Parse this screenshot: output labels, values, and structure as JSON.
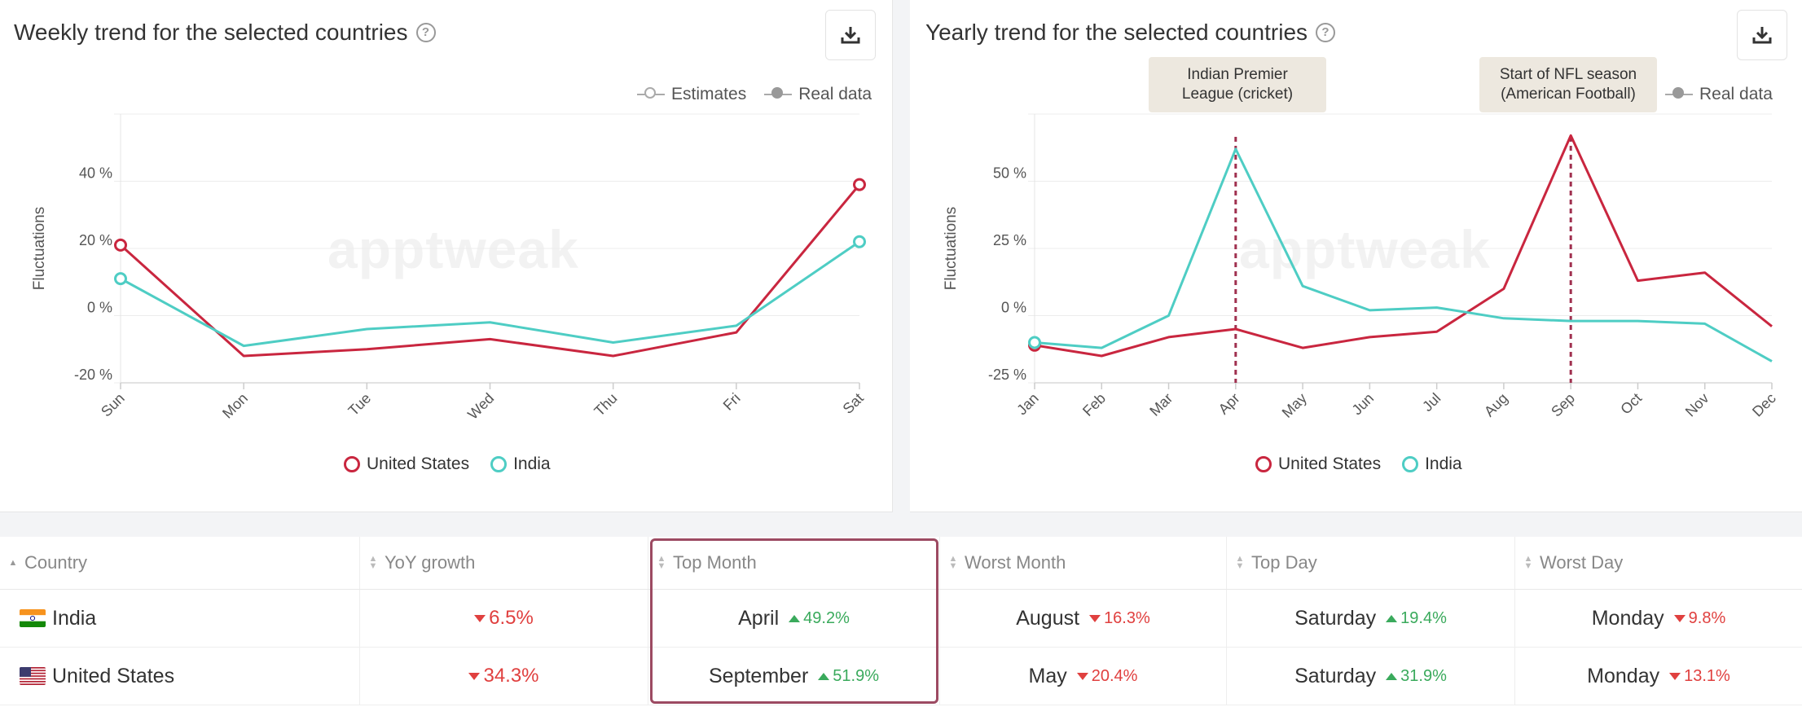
{
  "weekly": {
    "title": "Weekly trend for the selected countries",
    "legend_estimates": "Estimates",
    "legend_real": "Real data",
    "watermark": "apptweak",
    "chart_data": {
      "type": "line",
      "ylabel": "Fluctuations",
      "xlabel": "",
      "x": [
        "Sun",
        "Mon",
        "Tue",
        "Wed",
        "Thu",
        "Fri",
        "Sat"
      ],
      "yticks": [
        "40 %",
        "20 %",
        "0 %",
        "-20 %"
      ],
      "ylim": [
        -20,
        60
      ],
      "series": [
        {
          "name": "United States",
          "color": "#c9263f",
          "values": [
            21,
            -12,
            -10,
            -7,
            -12,
            -5,
            39
          ]
        },
        {
          "name": "India",
          "color": "#4ecdc4",
          "values": [
            11,
            -9,
            -4,
            -2,
            -8,
            -3,
            22
          ]
        }
      ]
    }
  },
  "yearly": {
    "title": "Yearly trend for the selected countries",
    "legend_real": "Real data",
    "watermark": "apptweak",
    "annotations": [
      {
        "line1": "Indian Premier",
        "line2": "League (cricket)",
        "month": "Apr"
      },
      {
        "line1": "Start of NFL season",
        "line2": "(American Football)",
        "month": "Sep"
      }
    ],
    "chart_data": {
      "type": "line",
      "ylabel": "Fluctuations",
      "xlabel": "",
      "x": [
        "Jan",
        "Feb",
        "Mar",
        "Apr",
        "May",
        "Jun",
        "Jul",
        "Aug",
        "Sep",
        "Oct",
        "Nov",
        "Dec"
      ],
      "yticks": [
        "50 %",
        "25 %",
        "0 %",
        "-25 %"
      ],
      "ylim": [
        -25,
        75
      ],
      "series": [
        {
          "name": "United States",
          "color": "#c9263f",
          "values": [
            -11,
            -15,
            -8,
            -5,
            -12,
            -8,
            -6,
            10,
            67,
            13,
            16,
            -4
          ]
        },
        {
          "name": "India",
          "color": "#4ecdc4",
          "values": [
            -10,
            -12,
            0,
            62,
            11,
            2,
            3,
            -1,
            -2,
            -2,
            -3,
            -17
          ]
        }
      ]
    }
  },
  "table": {
    "headers": [
      "Country",
      "YoY growth",
      "Top Month",
      "Worst Month",
      "Top Day",
      "Worst Day"
    ],
    "rows": [
      {
        "country": "India",
        "yoy": "6.5%",
        "top_month": "April",
        "top_month_pct": "49.2%",
        "worst_month": "August",
        "worst_month_pct": "16.3%",
        "top_day": "Saturday",
        "top_day_pct": "19.4%",
        "worst_day": "Monday",
        "worst_day_pct": "9.8%"
      },
      {
        "country": "United States",
        "yoy": "34.3%",
        "top_month": "September",
        "top_month_pct": "51.9%",
        "worst_month": "May",
        "worst_month_pct": "20.4%",
        "top_day": "Saturday",
        "top_day_pct": "31.9%",
        "worst_day": "Monday",
        "worst_day_pct": "13.1%"
      }
    ]
  },
  "icons": {
    "download": "download-icon",
    "help": "help-icon",
    "sort": "sort-icon"
  }
}
